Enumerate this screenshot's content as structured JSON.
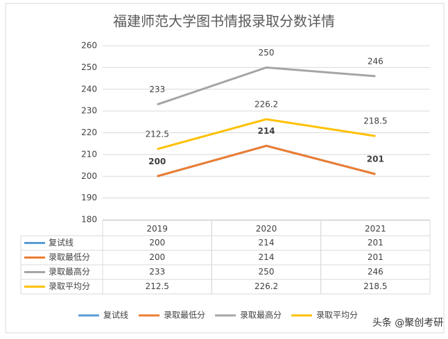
{
  "chart_data": {
    "type": "line",
    "title": "福建师范大学图书情报录取分数详情",
    "categories": [
      "2019",
      "2020",
      "2021"
    ],
    "series": [
      {
        "name": "复试线",
        "color": "#5b9bd5",
        "values": [
          200,
          214,
          201
        ],
        "data_labels": false
      },
      {
        "name": "录取最低分",
        "color": "#ed7d31",
        "values": [
          200,
          214,
          201
        ],
        "data_labels": true
      },
      {
        "name": "录取最高分",
        "color": "#a5a5a5",
        "values": [
          233,
          250,
          246
        ],
        "data_labels": true
      },
      {
        "name": "录取平均分",
        "color": "#ffc000",
        "values": [
          212.5,
          226.2,
          218.5
        ],
        "data_labels": true
      }
    ],
    "ylim": [
      180,
      260
    ],
    "yticks": [
      180,
      190,
      200,
      210,
      220,
      230,
      240,
      250,
      260
    ],
    "grid": true,
    "data_table": true,
    "legend": "bottom",
    "watermark": "头条 @聚创考研"
  }
}
